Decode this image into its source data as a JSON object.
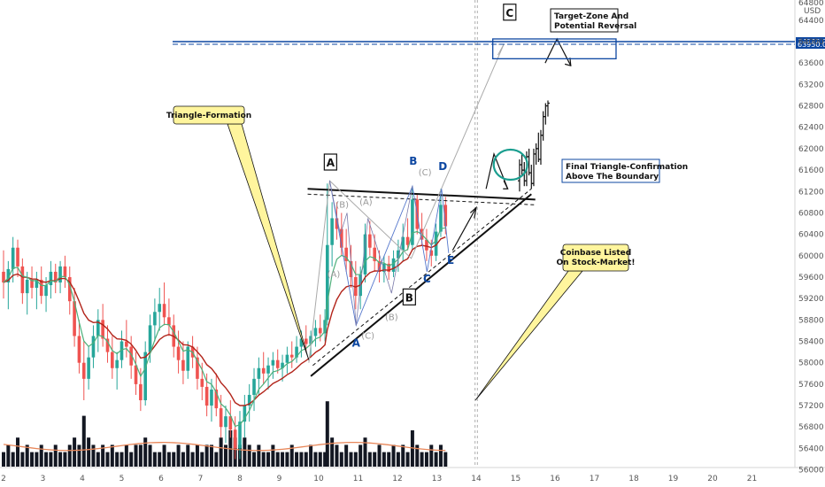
{
  "chart_data": {
    "type": "candlestick",
    "y_unit": "USD",
    "y_ticks": [
      "64400",
      "64000",
      "63600",
      "63200",
      "62800",
      "62400",
      "62000",
      "61600",
      "61200",
      "60800",
      "60400",
      "60000",
      "59600",
      "59200",
      "58800",
      "58400",
      "58000",
      "57600",
      "57200",
      "56800",
      "56400",
      "56000"
    ],
    "ylim": [
      55950,
      64650
    ],
    "y_top_label": "64800",
    "x_ticks": [
      "2",
      "3",
      "4",
      "5",
      "6",
      "7",
      "8",
      "9",
      "10",
      "11",
      "12",
      "13",
      "14",
      "15",
      "16",
      "17",
      "18",
      "19",
      "20",
      "21"
    ],
    "xlim": [
      2.0,
      21.0
    ],
    "price_levels": [
      {
        "value": 64000.0,
        "label": "64000.0"
      },
      {
        "value": 63950.0,
        "label": "63950.0"
      }
    ],
    "candles": [
      [
        2.0,
        59700,
        60100,
        59200,
        59500
      ],
      [
        2.12,
        59500,
        59900,
        59000,
        59750
      ],
      [
        2.24,
        59750,
        60350,
        59500,
        60150
      ],
      [
        2.36,
        60150,
        60300,
        59600,
        59800
      ],
      [
        2.48,
        59800,
        59950,
        59100,
        59300
      ],
      [
        2.6,
        59300,
        59700,
        58900,
        59550
      ],
      [
        2.72,
        59550,
        59800,
        59200,
        59400
      ],
      [
        2.84,
        59400,
        59700,
        59000,
        59550
      ],
      [
        2.96,
        59550,
        59800,
        59100,
        59250
      ],
      [
        3.08,
        59250,
        59600,
        58950,
        59450
      ],
      [
        3.2,
        59450,
        59900,
        59200,
        59700
      ],
      [
        3.32,
        59700,
        59850,
        59300,
        59500
      ],
      [
        3.44,
        59500,
        59900,
        59300,
        59800
      ],
      [
        3.56,
        59800,
        60000,
        59400,
        59600
      ],
      [
        3.68,
        59600,
        59800,
        58900,
        59150
      ],
      [
        3.8,
        59150,
        59400,
        58300,
        58500
      ],
      [
        3.92,
        58500,
        58800,
        57800,
        58000
      ],
      [
        4.04,
        58000,
        58400,
        57300,
        57700
      ],
      [
        4.16,
        57700,
        58300,
        57500,
        58100
      ],
      [
        4.28,
        58100,
        58700,
        57900,
        58500
      ],
      [
        4.4,
        58500,
        59000,
        58200,
        58800
      ],
      [
        4.52,
        58800,
        59100,
        58300,
        58450
      ],
      [
        4.64,
        58450,
        58700,
        58000,
        58200
      ],
      [
        4.76,
        58200,
        58500,
        57700,
        57900
      ],
      [
        4.88,
        57900,
        58200,
        57500,
        58050
      ],
      [
        5.0,
        58050,
        58600,
        57900,
        58400
      ],
      [
        5.12,
        58400,
        58800,
        58100,
        58300
      ],
      [
        5.24,
        58300,
        58500,
        57700,
        57950
      ],
      [
        5.36,
        57950,
        58200,
        57400,
        57600
      ],
      [
        5.48,
        57600,
        57900,
        57100,
        57300
      ],
      [
        5.6,
        57300,
        58400,
        57200,
        58200
      ],
      [
        5.72,
        58200,
        58900,
        58000,
        58700
      ],
      [
        5.84,
        58700,
        59200,
        58400,
        58950
      ],
      [
        5.96,
        58950,
        59400,
        58600,
        59100
      ],
      [
        6.08,
        59100,
        59500,
        58700,
        58850
      ],
      [
        6.2,
        58850,
        59200,
        58500,
        58700
      ],
      [
        6.32,
        58700,
        58900,
        58100,
        58300
      ],
      [
        6.44,
        58300,
        58600,
        57800,
        58050
      ],
      [
        6.56,
        58050,
        58400,
        57600,
        57850
      ],
      [
        6.68,
        57850,
        58400,
        57700,
        58300
      ],
      [
        6.8,
        58300,
        58500,
        57900,
        58100
      ],
      [
        6.92,
        58100,
        58300,
        57500,
        57700
      ],
      [
        7.04,
        57700,
        58000,
        57300,
        57550
      ],
      [
        7.16,
        57550,
        57800,
        57000,
        57200
      ],
      [
        7.28,
        57200,
        57700,
        56900,
        57500
      ],
      [
        7.4,
        57500,
        57800,
        57000,
        57150
      ],
      [
        7.52,
        57150,
        57400,
        56600,
        56800
      ],
      [
        7.64,
        56800,
        57200,
        56500,
        57000
      ],
      [
        7.76,
        57000,
        57300,
        56600,
        56750
      ],
      [
        7.88,
        56750,
        57000,
        56200,
        56400
      ],
      [
        8.0,
        56400,
        57100,
        56200,
        56900
      ],
      [
        8.12,
        56900,
        57400,
        56600,
        57200
      ],
      [
        8.24,
        57200,
        57600,
        56900,
        57400
      ],
      [
        8.36,
        57400,
        57900,
        57100,
        57700
      ],
      [
        8.48,
        57700,
        58100,
        57400,
        57900
      ],
      [
        8.6,
        57900,
        58200,
        57600,
        57800
      ],
      [
        8.72,
        57800,
        58100,
        57500,
        57950
      ],
      [
        8.84,
        57950,
        58200,
        57700,
        58050
      ],
      [
        8.96,
        58050,
        58250,
        57800,
        57900
      ],
      [
        9.08,
        57900,
        58150,
        57650,
        58000
      ],
      [
        9.2,
        58000,
        58300,
        57800,
        58150
      ],
      [
        9.32,
        58150,
        58400,
        57900,
        58100
      ],
      [
        9.44,
        58100,
        58500,
        58000,
        58300
      ],
      [
        9.56,
        58300,
        58600,
        58100,
        58450
      ],
      [
        9.68,
        58450,
        58700,
        58200,
        58350
      ],
      [
        9.8,
        58350,
        58600,
        58100,
        58500
      ],
      [
        9.92,
        58500,
        58800,
        58300,
        58650
      ],
      [
        10.04,
        58650,
        58900,
        58400,
        58550
      ],
      [
        10.16,
        58550,
        59000,
        58400,
        58800
      ],
      [
        10.22,
        58800,
        61350,
        58700,
        60200
      ],
      [
        10.34,
        60200,
        61000,
        59800,
        60700
      ],
      [
        10.46,
        60700,
        61000,
        60300,
        60500
      ],
      [
        10.58,
        60500,
        60800,
        60000,
        60150
      ],
      [
        10.7,
        60150,
        60500,
        59700,
        59900
      ],
      [
        10.82,
        59900,
        60200,
        59400,
        59600
      ],
      [
        10.94,
        59600,
        59900,
        59000,
        59250
      ],
      [
        11.06,
        59250,
        59800,
        59000,
        59650
      ],
      [
        11.18,
        59650,
        60600,
        59500,
        60400
      ],
      [
        11.3,
        60400,
        60650,
        60000,
        60150
      ],
      [
        11.42,
        60150,
        60400,
        59700,
        59900
      ],
      [
        11.54,
        59900,
        60100,
        59500,
        59700
      ],
      [
        11.66,
        59700,
        60000,
        59500,
        59850
      ],
      [
        11.78,
        59850,
        60000,
        59550,
        59700
      ],
      [
        11.9,
        59700,
        60100,
        59600,
        59950
      ],
      [
        12.02,
        59950,
        60300,
        59700,
        60100
      ],
      [
        12.14,
        60100,
        60600,
        59900,
        60350
      ],
      [
        12.26,
        60350,
        60700,
        60100,
        60200
      ],
      [
        12.38,
        60200,
        61300,
        60100,
        61050
      ],
      [
        12.5,
        61050,
        61150,
        60400,
        60500
      ],
      [
        12.62,
        60500,
        60800,
        60200,
        60300
      ],
      [
        12.74,
        60300,
        60500,
        59900,
        60100
      ],
      [
        12.86,
        60100,
        60300,
        59800,
        60000
      ],
      [
        12.98,
        60000,
        60600,
        59900,
        60450
      ],
      [
        13.1,
        60450,
        61250,
        60350,
        60950
      ],
      [
        13.22,
        60950,
        61100,
        60400,
        60550
      ]
    ],
    "projection_candles": [
      [
        15.1,
        61400,
        61800,
        61200,
        61700
      ],
      [
        15.16,
        61700,
        61900,
        61500,
        61600
      ],
      [
        15.22,
        61600,
        61750,
        61300,
        61400
      ],
      [
        15.28,
        61400,
        61950,
        61300,
        61850
      ],
      [
        15.34,
        61850,
        62000,
        61500,
        61550
      ],
      [
        15.4,
        61550,
        61700,
        61250,
        61350
      ],
      [
        15.46,
        61350,
        62000,
        61300,
        61900
      ],
      [
        15.52,
        61900,
        62100,
        61700,
        62000
      ],
      [
        15.58,
        62000,
        62300,
        61750,
        61800
      ],
      [
        15.64,
        61800,
        62350,
        61700,
        62250
      ],
      [
        15.7,
        62250,
        62700,
        62150,
        62600
      ],
      [
        15.76,
        62600,
        62850,
        62450,
        62800
      ],
      [
        15.82,
        62800,
        62900,
        62600,
        62850
      ]
    ],
    "volume": [
      [
        2.0,
        2
      ],
      [
        2.12,
        3
      ],
      [
        2.24,
        2
      ],
      [
        2.36,
        4
      ],
      [
        2.48,
        2
      ],
      [
        2.6,
        3
      ],
      [
        2.72,
        2
      ],
      [
        2.84,
        2
      ],
      [
        2.96,
        3
      ],
      [
        3.08,
        2
      ],
      [
        3.2,
        2
      ],
      [
        3.32,
        3
      ],
      [
        3.44,
        2
      ],
      [
        3.56,
        2
      ],
      [
        3.68,
        3
      ],
      [
        3.8,
        4
      ],
      [
        3.92,
        3
      ],
      [
        4.04,
        7
      ],
      [
        4.16,
        4
      ],
      [
        4.28,
        3
      ],
      [
        4.4,
        2
      ],
      [
        4.52,
        3
      ],
      [
        4.64,
        2
      ],
      [
        4.76,
        3
      ],
      [
        4.88,
        2
      ],
      [
        5.0,
        2
      ],
      [
        5.12,
        3
      ],
      [
        5.24,
        2
      ],
      [
        5.36,
        3
      ],
      [
        5.48,
        3
      ],
      [
        5.6,
        4
      ],
      [
        5.72,
        3
      ],
      [
        5.84,
        2
      ],
      [
        5.96,
        2
      ],
      [
        6.08,
        3
      ],
      [
        6.2,
        2
      ],
      [
        6.32,
        2
      ],
      [
        6.44,
        3
      ],
      [
        6.56,
        2
      ],
      [
        6.68,
        3
      ],
      [
        6.8,
        2
      ],
      [
        6.92,
        3
      ],
      [
        7.04,
        2
      ],
      [
        7.16,
        3
      ],
      [
        7.28,
        3
      ],
      [
        7.4,
        2
      ],
      [
        7.52,
        4
      ],
      [
        7.64,
        3
      ],
      [
        7.76,
        5
      ],
      [
        7.88,
        4
      ],
      [
        8.0,
        3
      ],
      [
        8.12,
        4
      ],
      [
        8.24,
        3
      ],
      [
        8.36,
        2
      ],
      [
        8.48,
        3
      ],
      [
        8.6,
        2
      ],
      [
        8.72,
        2
      ],
      [
        8.84,
        3
      ],
      [
        8.96,
        2
      ],
      [
        9.08,
        2
      ],
      [
        9.2,
        2
      ],
      [
        9.32,
        3
      ],
      [
        9.44,
        2
      ],
      [
        9.56,
        2
      ],
      [
        9.68,
        2
      ],
      [
        9.8,
        3
      ],
      [
        9.92,
        2
      ],
      [
        10.04,
        2
      ],
      [
        10.16,
        2
      ],
      [
        10.22,
        9
      ],
      [
        10.34,
        4
      ],
      [
        10.46,
        3
      ],
      [
        10.58,
        2
      ],
      [
        10.7,
        3
      ],
      [
        10.82,
        2
      ],
      [
        10.94,
        2
      ],
      [
        11.06,
        3
      ],
      [
        11.18,
        4
      ],
      [
        11.3,
        2
      ],
      [
        11.42,
        2
      ],
      [
        11.54,
        3
      ],
      [
        11.66,
        2
      ],
      [
        11.78,
        2
      ],
      [
        11.9,
        3
      ],
      [
        12.02,
        2
      ],
      [
        12.14,
        3
      ],
      [
        12.26,
        2
      ],
      [
        12.38,
        5
      ],
      [
        12.5,
        3
      ],
      [
        12.62,
        2
      ],
      [
        12.74,
        2
      ],
      [
        12.86,
        3
      ],
      [
        12.98,
        2
      ],
      [
        13.1,
        3
      ],
      [
        13.22,
        2
      ]
    ],
    "waves": {
      "big": [
        {
          "label": "A",
          "x": 10.3,
          "y": 61750
        },
        {
          "label": "B",
          "x": 12.3,
          "y": 59230
        },
        {
          "label": "C",
          "x": 14.85,
          "y": 64550
        }
      ],
      "blue": [
        {
          "label": "A",
          "x": 10.95,
          "y": 58300
        },
        {
          "label": "B",
          "x": 12.4,
          "y": 61700
        },
        {
          "label": "C",
          "x": 12.75,
          "y": 59500
        },
        {
          "label": "D",
          "x": 13.15,
          "y": 61600
        },
        {
          "label": "E",
          "x": 13.35,
          "y": 59850
        }
      ],
      "grey": [
        {
          "label": "(A)",
          "x": 10.38,
          "y": 59600
        },
        {
          "label": "(B)",
          "x": 10.6,
          "y": 60900
        },
        {
          "label": "(C)",
          "x": 11.25,
          "y": 58450
        },
        {
          "label": "(A)",
          "x": 11.2,
          "y": 60950
        },
        {
          "label": "(B)",
          "x": 11.85,
          "y": 58800
        },
        {
          "label": "(C)",
          "x": 12.7,
          "y": 61500
        }
      ]
    },
    "annotations": [
      {
        "text": "Triangle-Formation"
      },
      {
        "text": "Coinbase Listed",
        "text2": "On Stock-Market!"
      },
      {
        "text": "Final Triangle-Confirmation",
        "text2": "Above The Boundary"
      },
      {
        "text": "Target-Zone And",
        "text2": "Potential Reversal"
      }
    ]
  },
  "colors": {
    "up": "#26a69a",
    "down": "#ef5350",
    "volume": "#131722",
    "ema_red": "#b2241a",
    "ema_green": "#4caf7a",
    "vol_ma": "#e8875a",
    "blue": "#0d47a1",
    "teal": "#1a9e8f",
    "wave_blue": "#0d47a1",
    "grey": "#aaaaaa",
    "callout": "#fff59d"
  }
}
